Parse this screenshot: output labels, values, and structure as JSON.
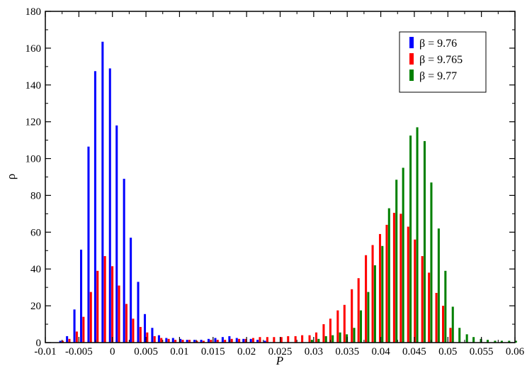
{
  "chart_data": {
    "type": "bar",
    "xlabel": "P",
    "ylabel": "ρ",
    "xlim": [
      -0.01,
      0.06
    ],
    "ylim": [
      0,
      180
    ],
    "x_ticks": [
      "-0.01",
      "-0.005",
      "0",
      "0.005",
      "0.01",
      "0.015",
      "0.02",
      "0.025",
      "0.03",
      "0.035",
      "0.04",
      "0.045",
      "0.05",
      "0.055",
      "0.06"
    ],
    "x_tick_values": [
      -0.01,
      -0.005,
      0,
      0.005,
      0.01,
      0.015,
      0.02,
      0.025,
      0.03,
      0.035,
      0.04,
      0.045,
      0.05,
      0.055,
      0.06
    ],
    "y_ticks": [
      "0",
      "20",
      "40",
      "60",
      "80",
      "100",
      "120",
      "140",
      "160",
      "180"
    ],
    "y_tick_values": [
      0,
      20,
      40,
      60,
      80,
      100,
      120,
      140,
      160,
      180
    ],
    "bin_width": 0.00105,
    "legend_position": "top-right",
    "series": [
      {
        "name": "β = 9.76",
        "color": "#0000ff",
        "x": [
          -0.0074,
          -0.0064,
          -0.0053,
          -0.0043,
          -0.0032,
          -0.0022,
          -0.0011,
          0.0,
          0.001,
          0.0021,
          0.0031,
          0.0042,
          0.0052,
          0.0063,
          0.0073,
          0.0084,
          0.0094,
          0.0105,
          0.0115,
          0.0126,
          0.0136,
          0.0147,
          0.0157,
          0.0168,
          0.0178,
          0.0189,
          0.0199,
          0.021,
          0.022,
          0.0231
        ],
        "values": [
          1,
          3.5,
          18,
          50.5,
          106.5,
          147.5,
          163.5,
          149,
          118,
          89,
          57,
          33,
          15.5,
          8,
          4,
          2.5,
          2.5,
          2,
          1.5,
          1.5,
          1.5,
          2,
          2.5,
          3,
          3.5,
          2.5,
          2,
          2,
          1.5,
          1
        ]
      },
      {
        "name": "β = 9.765",
        "color": "#ff0000",
        "x": [
          -0.0074,
          -0.0064,
          -0.0053,
          -0.0043,
          -0.0032,
          -0.0022,
          -0.0011,
          0.0,
          0.001,
          0.0021,
          0.0031,
          0.0042,
          0.0052,
          0.0063,
          0.0073,
          0.0084,
          0.0094,
          0.0105,
          0.0115,
          0.0126,
          0.0136,
          0.0147,
          0.0157,
          0.0168,
          0.0178,
          0.0189,
          0.0199,
          0.021,
          0.022,
          0.0231,
          0.0241,
          0.0252,
          0.0262,
          0.0273,
          0.0283,
          0.0294,
          0.0304,
          0.0315,
          0.0325,
          0.0336,
          0.0346,
          0.0357,
          0.0367,
          0.0378,
          0.0388,
          0.0399,
          0.0409,
          0.042,
          0.043,
          0.0441,
          0.0451,
          0.0462,
          0.0472,
          0.0483,
          0.0493,
          0.0504
        ],
        "values": [
          1,
          2,
          6,
          14,
          27.5,
          39,
          47,
          41.5,
          31,
          21,
          13,
          8.5,
          5.5,
          3.5,
          2.5,
          2,
          1.5,
          1.5,
          1.5,
          1,
          1,
          1.5,
          1.5,
          1.5,
          2,
          2,
          2,
          2.5,
          3,
          3,
          3,
          3,
          3.5,
          3.5,
          4,
          4,
          5.5,
          10,
          13,
          17.5,
          20.5,
          29,
          35,
          47.5,
          53,
          59,
          64,
          70.5,
          70,
          63,
          56,
          47,
          38,
          27,
          20,
          8
        ]
      },
      {
        "name": "β = 9.77",
        "color": "#008000",
        "x": [
          0.0294,
          0.0304,
          0.0315,
          0.0325,
          0.0336,
          0.0346,
          0.0357,
          0.0367,
          0.0378,
          0.0388,
          0.0399,
          0.0409,
          0.042,
          0.043,
          0.0441,
          0.0451,
          0.0462,
          0.0472,
          0.0483,
          0.0493,
          0.0504,
          0.0514,
          0.0525,
          0.0535,
          0.0546,
          0.0556,
          0.0567,
          0.0577,
          0.0588,
          0.0598
        ],
        "values": [
          1.5,
          2,
          3.5,
          4,
          5.5,
          4.5,
          8,
          17.5,
          27.5,
          42,
          52.5,
          73,
          88.5,
          95,
          112.5,
          117,
          109.5,
          87,
          62,
          39,
          19.5,
          8,
          4.5,
          3,
          2,
          1.5,
          1,
          1,
          1,
          1
        ]
      }
    ]
  }
}
